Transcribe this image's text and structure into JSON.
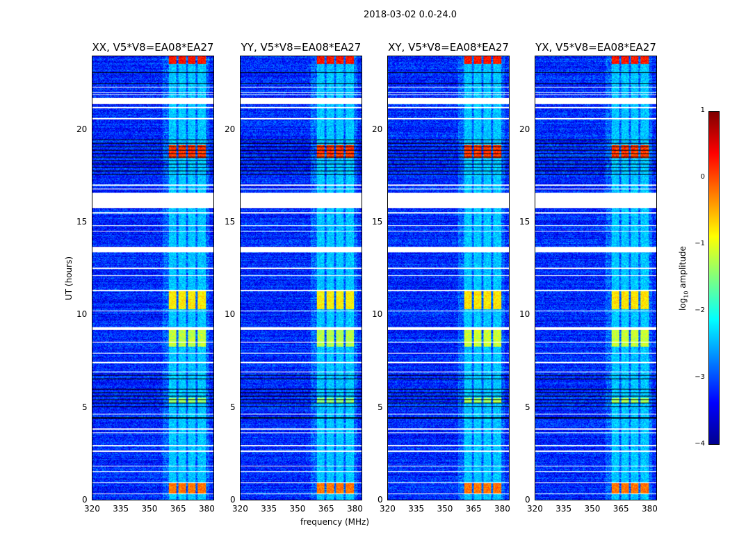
{
  "chart_data": {
    "type": "heatmap",
    "title": "2018-03-02 0.0-24.0",
    "panels": [
      {
        "title": "XX, V5*V8=EA08*EA27",
        "intensity": 1.0
      },
      {
        "title": "YY, V5*V8=EA08*EA27",
        "intensity": 1.05
      },
      {
        "title": "XY, V5*V8=EA08*EA27",
        "intensity": 0.95
      },
      {
        "title": "YX, V5*V8=EA08*EA27",
        "intensity": 0.95
      }
    ],
    "xlabel": "frequency (MHz)",
    "ylabel": "UT (hours)",
    "xlim": [
      320,
      384
    ],
    "ylim": [
      0,
      24
    ],
    "xticks": [
      "320",
      "335",
      "350",
      "365",
      "380"
    ],
    "yticks": [
      "0",
      "5",
      "10",
      "15",
      "20"
    ],
    "colorbar": {
      "label": "log",
      "label_sub": "10",
      "label_rest": " amplitude",
      "range": [
        -4,
        1
      ],
      "ticks": [
        "1",
        "0",
        "−1",
        "−2",
        "−3",
        "−4"
      ],
      "colormap": "jet"
    },
    "background_level": -3.2,
    "rfi_channels_mhz": [
      [
        360.4,
        364.5
      ],
      [
        365.5,
        369.5
      ],
      [
        370.5,
        374.5
      ],
      [
        375.5,
        380
      ]
    ],
    "rfi_bursts": [
      {
        "t": [
          23.6,
          24
        ],
        "level": 0.3
      },
      {
        "t": [
          18.5,
          19.2
        ],
        "level": 0.1
      },
      {
        "t": [
          10.3,
          11.3
        ],
        "level": -0.8
      },
      {
        "t": [
          8.3,
          9.2
        ],
        "level": -1.2
      },
      {
        "t": [
          0.3,
          0.9
        ],
        "level": -0.2
      },
      {
        "t": [
          5.2,
          5.5
        ],
        "level": -1.4
      }
    ],
    "flagged_white_hours": [
      [
        21.4,
        21.75
      ],
      [
        15.8,
        16.6
      ],
      [
        13.4,
        13.7
      ],
      [
        9.2,
        9.35
      ],
      [
        22.3,
        22.35
      ],
      [
        22.0,
        22.05
      ],
      [
        21.9,
        21.95
      ],
      [
        21.2,
        21.25
      ],
      [
        20.6,
        20.65
      ],
      [
        17.0,
        17.05
      ],
      [
        16.8,
        16.85
      ],
      [
        15.5,
        15.55
      ],
      [
        14.8,
        14.85
      ],
      [
        14.5,
        14.55
      ],
      [
        12.5,
        12.55
      ],
      [
        12.1,
        12.15
      ],
      [
        11.3,
        11.35
      ],
      [
        10.2,
        10.25
      ],
      [
        8.5,
        8.55
      ],
      [
        7.9,
        7.95
      ],
      [
        7.4,
        7.45
      ],
      [
        6.9,
        6.95
      ],
      [
        4.6,
        4.65
      ],
      [
        3.8,
        3.85
      ],
      [
        3.6,
        3.65
      ],
      [
        2.9,
        2.95
      ],
      [
        2.6,
        2.65
      ],
      [
        1.8,
        1.85
      ],
      [
        1.5,
        1.55
      ],
      [
        0.9,
        0.95
      ],
      [
        0.3,
        0.35
      ]
    ],
    "flagged_black_hours": [
      [
        23.1,
        23.15
      ],
      [
        22.5,
        22.55
      ],
      [
        6.4,
        7.0
      ],
      [
        4.4,
        4.45
      ],
      [
        17.5,
        19.6
      ],
      [
        5.0,
        6.0
      ]
    ]
  }
}
